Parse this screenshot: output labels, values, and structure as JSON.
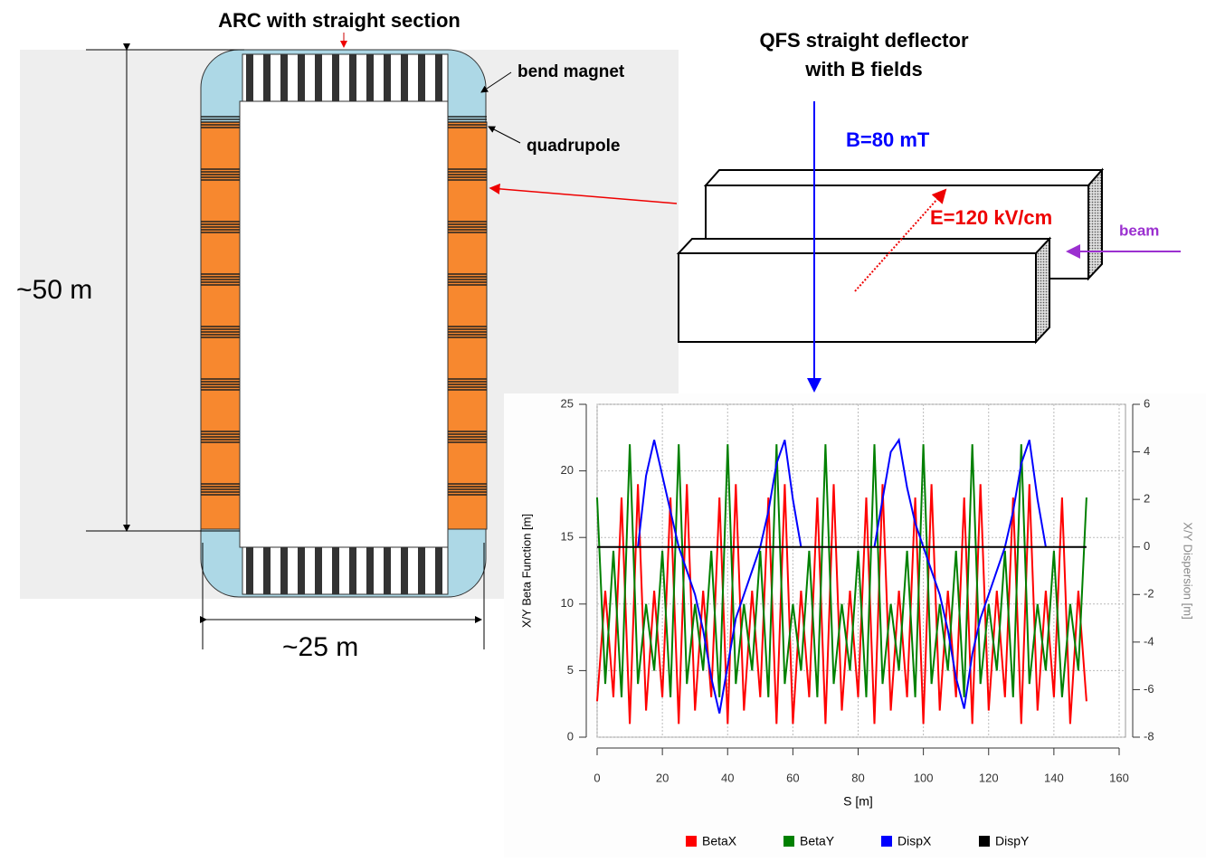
{
  "diagram": {
    "ring_title": "ARC with straight section",
    "bend_label": "bend magnet",
    "quad_label": "quadrupole",
    "height_label": "~50 m",
    "width_label": "~25 m",
    "deflector_title": [
      "QFS straight deflector",
      "with  B fields"
    ],
    "b_field": "B=80 mT",
    "e_field": "E=120 kV/cm",
    "beam": "beam"
  },
  "chart_data": {
    "type": "line",
    "x_label": "S [m]",
    "y_label": "X/Y Beta Function [m]",
    "y2_label": "X/Y Dispersion [m]",
    "xlim": [
      0,
      160
    ],
    "xticks": [
      0,
      20,
      40,
      60,
      80,
      100,
      120,
      140,
      160
    ],
    "ylim": [
      0,
      25
    ],
    "yticks": [
      0,
      5,
      10,
      15,
      20,
      25
    ],
    "y2lim": [
      -8,
      6
    ],
    "y2ticks": [
      -8,
      -6,
      -4,
      -2,
      0,
      2,
      4,
      6
    ],
    "grid": true,
    "x": [
      0,
      2.5,
      5,
      7.5,
      10,
      12.5,
      15,
      17.5,
      20,
      22.5,
      25,
      27.5,
      30,
      32.5,
      35,
      37.5,
      40,
      42.5,
      45,
      47.5,
      50,
      52.5,
      55,
      57.5,
      60,
      62.5,
      65,
      67.5,
      70,
      72.5,
      75,
      77.5,
      80,
      82.5,
      85,
      87.5,
      90,
      92.5,
      95,
      97.5,
      100,
      102.5,
      105,
      107.5,
      110,
      112.5,
      115,
      117.5,
      120,
      122.5,
      125,
      127.5,
      130,
      132.5,
      135,
      137.5,
      140,
      142.5,
      145,
      147.5,
      150
    ],
    "series": [
      {
        "name": "BetaX",
        "color": "#ff0000",
        "values": [
          2.7,
          11,
          3,
          18,
          1,
          19,
          2,
          11,
          3,
          18,
          1,
          19,
          2,
          11,
          3,
          18,
          1,
          19,
          2,
          11,
          3,
          18,
          1,
          19,
          1,
          11,
          3,
          18,
          1,
          19,
          2,
          11,
          3,
          18,
          1,
          19,
          2,
          11,
          3,
          18,
          1,
          19,
          2,
          11,
          3,
          18,
          1,
          19,
          2,
          11,
          3,
          18,
          1,
          19,
          2,
          11,
          3,
          18,
          1,
          11,
          2.7
        ]
      },
      {
        "name": "BetaY",
        "color": "#008000",
        "values": [
          18,
          4,
          14,
          3,
          22,
          4,
          10,
          5,
          14,
          3,
          22,
          4,
          10,
          5,
          14,
          3,
          22,
          4,
          10,
          5,
          14,
          3,
          22,
          4,
          10,
          5,
          14,
          3,
          22,
          4,
          10,
          5,
          14,
          3,
          22,
          4,
          10,
          5,
          14,
          3,
          22,
          4,
          10,
          5,
          14,
          3,
          22,
          4,
          10,
          5,
          14,
          3,
          22,
          4,
          10,
          5,
          14,
          3,
          10,
          5,
          18
        ]
      },
      {
        "name": "DispX",
        "color": "#0000ff",
        "axis": "y2",
        "values": [
          null,
          null,
          null,
          null,
          null,
          0,
          3,
          4.5,
          3,
          1.5,
          0,
          -1,
          -2,
          -3.5,
          -5.5,
          -7,
          -5,
          -3,
          -2,
          -1,
          0,
          1.5,
          3.5,
          4.5,
          2,
          0,
          null,
          null,
          null,
          null,
          null,
          null,
          null,
          null,
          0,
          2,
          4,
          4.5,
          2.5,
          1,
          0,
          -1,
          -2,
          -3.5,
          -5.5,
          -6.8,
          -4.5,
          -3,
          -2,
          -1,
          0,
          1.5,
          3.5,
          4.5,
          2,
          0,
          null,
          null,
          null,
          null,
          null
        ]
      },
      {
        "name": "DispY",
        "color": "#000000",
        "axis": "y2",
        "values": [
          0,
          0,
          0,
          0,
          0,
          0,
          0,
          0,
          0,
          0,
          0,
          0,
          0,
          0,
          0,
          0,
          0,
          0,
          0,
          0,
          0,
          0,
          0,
          0,
          0,
          0,
          0,
          0,
          0,
          0,
          0,
          0,
          0,
          0,
          0,
          0,
          0,
          0,
          0,
          0,
          0,
          0,
          0,
          0,
          0,
          0,
          0,
          0,
          0,
          0,
          0,
          0,
          0,
          0,
          0,
          0,
          0,
          0,
          0,
          0,
          0
        ]
      }
    ]
  }
}
